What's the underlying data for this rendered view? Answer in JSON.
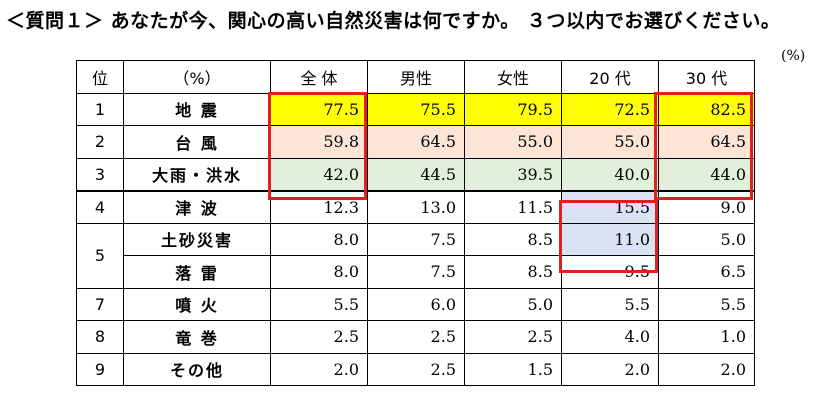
{
  "question_title": "＜質問１＞ あなたが今、関心の高い自然災害は何ですか。 ３つ以内でお選びください。",
  "unit_note": "(%)",
  "table": {
    "rank_header": "位",
    "item_header": "（%）",
    "columns": [
      "全 体",
      "男性",
      "女性",
      "20 代",
      "30 代"
    ],
    "rows": [
      {
        "rank": "1",
        "item": "地 震",
        "values": [
          "77.5",
          "75.5",
          "79.5",
          "72.5",
          "82.5"
        ]
      },
      {
        "rank": "2",
        "item": "台 風",
        "values": [
          "59.8",
          "64.5",
          "55.0",
          "55.0",
          "64.5"
        ]
      },
      {
        "rank": "3",
        "item": "大雨・洪水",
        "values": [
          "42.0",
          "44.5",
          "39.5",
          "40.0",
          "44.0"
        ]
      },
      {
        "rank": "4",
        "item": "津 波",
        "values": [
          "12.3",
          "13.0",
          "11.5",
          "15.5",
          "9.0"
        ]
      },
      {
        "rank": "5",
        "item": "土砂災害",
        "values": [
          "8.0",
          "7.5",
          "8.5",
          "11.0",
          "5.0"
        ]
      },
      {
        "rank": "",
        "item": "落 雷",
        "values": [
          "8.0",
          "7.5",
          "8.5",
          "9.5",
          "6.5"
        ]
      },
      {
        "rank": "7",
        "item": "噴 火",
        "values": [
          "5.5",
          "6.0",
          "5.0",
          "5.5",
          "5.5"
        ]
      },
      {
        "rank": "8",
        "item": "竜 巻",
        "values": [
          "2.5",
          "2.5",
          "2.5",
          "4.0",
          "1.0"
        ]
      },
      {
        "rank": "9",
        "item": "その他",
        "values": [
          "2.0",
          "2.5",
          "1.5",
          "2.0",
          "2.0"
        ]
      }
    ]
  },
  "colors": {
    "rank1": "#ffff00",
    "rank2": "#fce4d6",
    "rank3": "#e2efda",
    "highlight_blue": "#dae3f3",
    "box_border": "#e02020"
  }
}
